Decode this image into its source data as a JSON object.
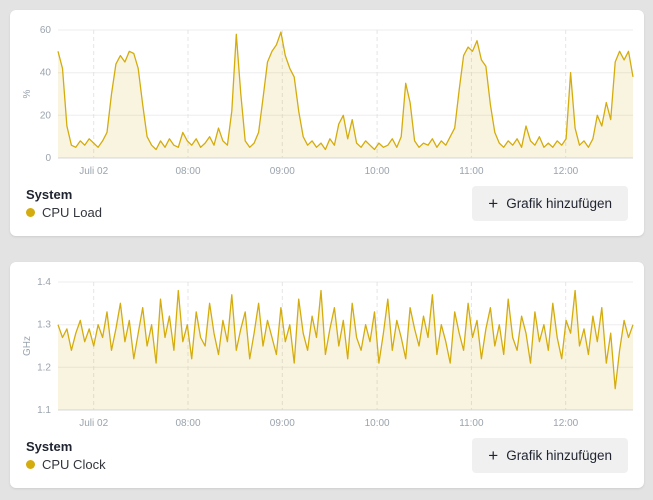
{
  "ui": {
    "plus_icon": "+"
  },
  "panels": [
    {
      "group_label": "System",
      "series_label": "CPU Load",
      "button_label": "Grafik hinzufügen",
      "series_color": "#d4ac0d"
    },
    {
      "group_label": "System",
      "series_label": "CPU Clock",
      "button_label": "Grafik hinzufügen",
      "series_color": "#d4ac0d"
    }
  ],
  "chart_data": [
    {
      "type": "area",
      "title": "CPU Load",
      "ylabel": "%",
      "ylim": [
        0,
        60
      ],
      "yticks": [
        0,
        20,
        40,
        60
      ],
      "ytick_labels": [
        "0",
        "20",
        "40",
        "60"
      ],
      "xticks": [
        {
          "label": "Juli 02",
          "pos": 0.062
        },
        {
          "label": "08:00",
          "pos": 0.226
        },
        {
          "label": "09:00",
          "pos": 0.39
        },
        {
          "label": "10:00",
          "pos": 0.555
        },
        {
          "label": "11:00",
          "pos": 0.719
        },
        {
          "label": "12:00",
          "pos": 0.883
        }
      ],
      "grid": true,
      "legend_position": "bottom-left",
      "line_color": "#d4ac0d",
      "fill_color": "rgba(212,172,13,0.13)",
      "values": [
        50,
        42,
        15,
        6,
        5,
        8,
        6,
        9,
        7,
        5,
        8,
        12,
        30,
        44,
        48,
        45,
        50,
        49,
        42,
        25,
        10,
        6,
        4,
        8,
        5,
        9,
        6,
        5,
        12,
        8,
        6,
        9,
        5,
        7,
        10,
        6,
        14,
        8,
        6,
        22,
        58,
        30,
        8,
        5,
        7,
        12,
        28,
        45,
        50,
        53,
        59,
        48,
        42,
        38,
        22,
        10,
        6,
        8,
        5,
        7,
        4,
        9,
        6,
        16,
        20,
        9,
        18,
        7,
        5,
        8,
        6,
        4,
        7,
        5,
        6,
        9,
        5,
        10,
        35,
        26,
        8,
        5,
        7,
        6,
        9,
        5,
        8,
        6,
        10,
        14,
        32,
        48,
        52,
        50,
        55,
        46,
        43,
        25,
        12,
        7,
        5,
        8,
        6,
        9,
        5,
        15,
        8,
        6,
        10,
        5,
        7,
        5,
        8,
        6,
        9,
        40,
        14,
        6,
        8,
        5,
        9,
        20,
        15,
        26,
        18,
        45,
        50,
        46,
        50,
        38
      ]
    },
    {
      "type": "area",
      "title": "CPU Clock",
      "ylabel": "GHz",
      "ylim": [
        1.1,
        1.4
      ],
      "yticks": [
        1.1,
        1.2,
        1.3,
        1.4
      ],
      "ytick_labels": [
        "1.1",
        "1.2",
        "1.3",
        "1.4"
      ],
      "xticks": [
        {
          "label": "Juli 02",
          "pos": 0.062
        },
        {
          "label": "08:00",
          "pos": 0.226
        },
        {
          "label": "09:00",
          "pos": 0.39
        },
        {
          "label": "10:00",
          "pos": 0.555
        },
        {
          "label": "11:00",
          "pos": 0.719
        },
        {
          "label": "12:00",
          "pos": 0.883
        }
      ],
      "grid": true,
      "legend_position": "bottom-left",
      "line_color": "#d4ac0d",
      "fill_color": "rgba(212,172,13,0.13)",
      "values": [
        1.3,
        1.27,
        1.29,
        1.24,
        1.28,
        1.31,
        1.26,
        1.29,
        1.25,
        1.3,
        1.27,
        1.33,
        1.24,
        1.29,
        1.35,
        1.26,
        1.31,
        1.22,
        1.28,
        1.34,
        1.25,
        1.3,
        1.21,
        1.36,
        1.27,
        1.32,
        1.24,
        1.38,
        1.26,
        1.3,
        1.22,
        1.33,
        1.27,
        1.25,
        1.35,
        1.28,
        1.23,
        1.31,
        1.26,
        1.37,
        1.24,
        1.29,
        1.33,
        1.22,
        1.28,
        1.35,
        1.25,
        1.31,
        1.27,
        1.23,
        1.34,
        1.26,
        1.3,
        1.21,
        1.36,
        1.28,
        1.24,
        1.32,
        1.27,
        1.38,
        1.23,
        1.29,
        1.34,
        1.25,
        1.31,
        1.22,
        1.35,
        1.27,
        1.24,
        1.3,
        1.26,
        1.33,
        1.21,
        1.28,
        1.36,
        1.24,
        1.31,
        1.27,
        1.22,
        1.34,
        1.29,
        1.25,
        1.32,
        1.27,
        1.37,
        1.23,
        1.3,
        1.26,
        1.21,
        1.33,
        1.28,
        1.24,
        1.35,
        1.27,
        1.31,
        1.22,
        1.29,
        1.34,
        1.25,
        1.3,
        1.23,
        1.36,
        1.27,
        1.24,
        1.32,
        1.28,
        1.21,
        1.33,
        1.26,
        1.3,
        1.24,
        1.35,
        1.27,
        1.22,
        1.31,
        1.28,
        1.38,
        1.25,
        1.29,
        1.23,
        1.32,
        1.26,
        1.34,
        1.21,
        1.28,
        1.15,
        1.24,
        1.31,
        1.27,
        1.3
      ]
    }
  ]
}
